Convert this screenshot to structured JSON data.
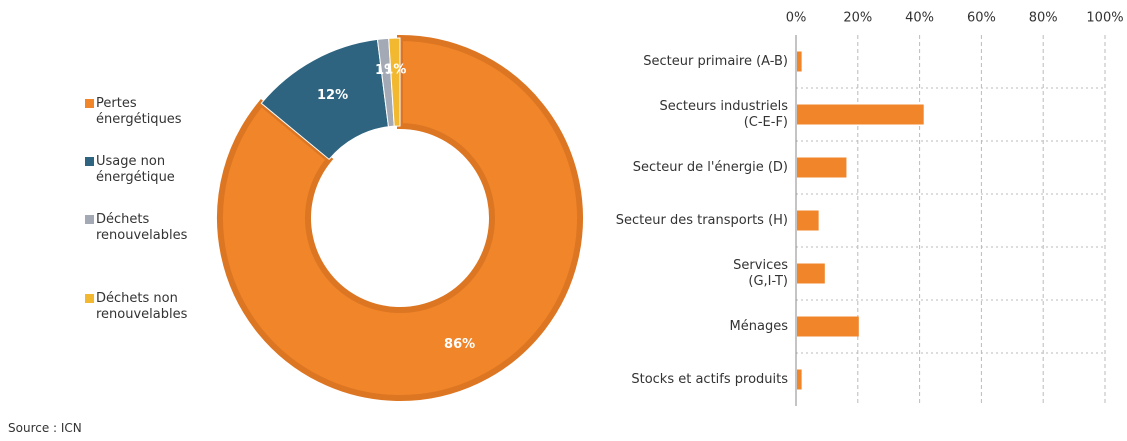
{
  "chart_data": [
    {
      "type": "donut",
      "series": [
        {
          "name": "Pertes\nénergétiques",
          "color": "#f0852a"
        },
        {
          "name": "Usage non\nénergétique",
          "color": "#2e6480"
        },
        {
          "name": "Déchets\nrenouvelables",
          "color": "#a3aab5"
        },
        {
          "name": "Déchets non\nrenouvelables",
          "color": "#f2b830"
        }
      ],
      "values": [
        86,
        12,
        1,
        1
      ],
      "value_labels": [
        "86%",
        "12%",
        "1%",
        "1%"
      ]
    },
    {
      "type": "hbar",
      "categories": [
        "Secteur primaire (A-B)",
        "Secteurs industriels\n(C-E-F)",
        "Secteur de l'énergie (D)",
        "Secteur des transports (H)",
        "Services\n(G,I-T)",
        "Ménages",
        "Stocks et actifs produits"
      ],
      "values": [
        1.5,
        41,
        16,
        7,
        9,
        20,
        1.5
      ],
      "color": "#f0852a",
      "xlim": [
        0,
        100
      ],
      "xticks": [
        {
          "value": 0,
          "label": "0%"
        },
        {
          "value": 20,
          "label": "20%"
        },
        {
          "value": 40,
          "label": "40%"
        },
        {
          "value": 60,
          "label": "60%"
        },
        {
          "value": 80,
          "label": "80%"
        },
        {
          "value": 100,
          "label": "100%"
        }
      ],
      "grid": true
    }
  ],
  "source": "Source : ICN"
}
